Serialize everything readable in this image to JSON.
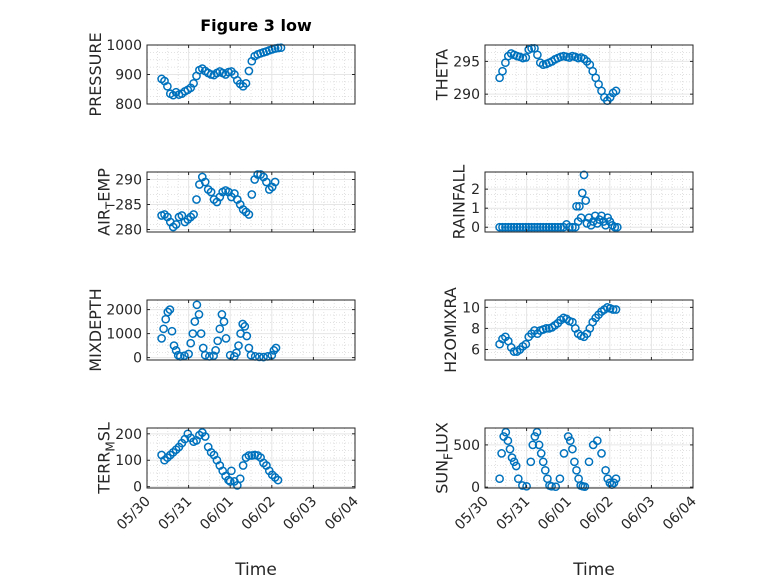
{
  "figure": {
    "title": "Figure 3 low",
    "xlabel": "Time",
    "x_tick_labels": [
      "05/30",
      "05/31",
      "06/01",
      "06/02",
      "06/03",
      "06/04"
    ]
  },
  "colors": {
    "marker": "#0072BD",
    "axis": "#262626",
    "grid": "#d9d9d9"
  },
  "chart_data": [
    {
      "type": "scatter",
      "ylabel": "PRESSURE",
      "ylim": [
        800,
        1000
      ],
      "yticks": [
        800,
        900,
        1000
      ],
      "x": [
        0.35,
        0.42,
        0.49,
        0.56,
        0.63,
        0.7,
        0.77,
        0.84,
        0.91,
        0.98,
        1.05,
        1.12,
        1.19,
        1.26,
        1.33,
        1.4,
        1.47,
        1.54,
        1.61,
        1.68,
        1.75,
        1.82,
        1.89,
        1.96,
        2.03,
        2.1,
        2.17,
        2.24,
        2.31,
        2.38,
        2.45,
        2.52,
        2.59,
        2.66,
        2.73,
        2.8,
        2.87,
        2.94,
        3.01,
        3.08,
        3.15,
        3.22
      ],
      "y": [
        885,
        878,
        860,
        835,
        830,
        840,
        832,
        835,
        843,
        848,
        855,
        870,
        895,
        915,
        920,
        912,
        905,
        900,
        898,
        905,
        910,
        905,
        900,
        908,
        910,
        900,
        880,
        868,
        860,
        870,
        912,
        945,
        962,
        968,
        972,
        975,
        978,
        982,
        985,
        988,
        990,
        991
      ]
    },
    {
      "type": "scatter",
      "ylabel": "THETA",
      "ylim": [
        288.5,
        297.5
      ],
      "yticks": [
        290,
        295
      ],
      "x": [
        0.35,
        0.42,
        0.49,
        0.56,
        0.63,
        0.7,
        0.77,
        0.84,
        0.91,
        0.98,
        1.05,
        1.12,
        1.19,
        1.26,
        1.33,
        1.4,
        1.47,
        1.54,
        1.61,
        1.68,
        1.75,
        1.82,
        1.89,
        1.96,
        2.03,
        2.1,
        2.17,
        2.24,
        2.31,
        2.38,
        2.45,
        2.52,
        2.59,
        2.66,
        2.73,
        2.8,
        2.87,
        2.94,
        3.01,
        3.08,
        3.15
      ],
      "y": [
        292.5,
        293.5,
        294.8,
        295.8,
        296.2,
        296.0,
        295.8,
        295.7,
        295.5,
        295.6,
        296.8,
        297.0,
        297.0,
        296.0,
        294.8,
        294.5,
        294.6,
        294.8,
        295.0,
        295.3,
        295.5,
        295.7,
        295.8,
        295.7,
        295.6,
        295.8,
        295.7,
        295.5,
        295.6,
        295.4,
        295.0,
        294.5,
        293.5,
        292.5,
        291.5,
        290.5,
        289.5,
        289.0,
        289.5,
        290.2,
        290.5
      ]
    },
    {
      "type": "scatter",
      "ylabel": "AIR_TEMP",
      "ylim": [
        279.5,
        291.5
      ],
      "yticks": [
        280,
        285,
        290
      ],
      "x": [
        0.35,
        0.42,
        0.49,
        0.56,
        0.63,
        0.7,
        0.77,
        0.84,
        0.91,
        0.98,
        1.05,
        1.12,
        1.19,
        1.26,
        1.33,
        1.4,
        1.47,
        1.54,
        1.61,
        1.68,
        1.75,
        1.82,
        1.89,
        1.96,
        2.03,
        2.1,
        2.17,
        2.24,
        2.31,
        2.38,
        2.45,
        2.52,
        2.59,
        2.66,
        2.73,
        2.8,
        2.87,
        2.94,
        3.01,
        3.08
      ],
      "y": [
        282.8,
        283.0,
        282.5,
        281.5,
        280.5,
        281.0,
        282.5,
        282.8,
        281.5,
        282.0,
        282.5,
        283.0,
        286.0,
        289.0,
        290.5,
        289.5,
        288.0,
        287.5,
        286.0,
        285.5,
        286.5,
        287.5,
        287.8,
        287.5,
        286.5,
        287.2,
        286.0,
        285.0,
        284.0,
        283.5,
        283.0,
        287.0,
        290.0,
        291.0,
        291.0,
        290.5,
        289.5,
        288.0,
        288.5,
        289.5
      ]
    },
    {
      "type": "scatter",
      "ylabel": "RAINFALL",
      "ylim": [
        -0.25,
        2.9
      ],
      "yticks": [
        0,
        1,
        2
      ],
      "x": [
        0.35,
        0.42,
        0.49,
        0.56,
        0.63,
        0.7,
        0.77,
        0.84,
        0.91,
        0.98,
        1.05,
        1.12,
        1.19,
        1.26,
        1.33,
        1.4,
        1.47,
        1.54,
        1.61,
        1.68,
        1.75,
        1.82,
        1.89,
        1.96,
        2.03,
        2.1,
        2.17,
        2.2,
        2.24,
        2.27,
        2.31,
        2.34,
        2.38,
        2.42,
        2.45,
        2.5,
        2.55,
        2.6,
        2.65,
        2.7,
        2.75,
        2.8,
        2.85,
        2.9,
        2.95,
        3.0,
        3.06,
        3.12,
        3.18
      ],
      "y": [
        0,
        0,
        0,
        0,
        0,
        0,
        0,
        0,
        0,
        0,
        0,
        0,
        0,
        0,
        0,
        0,
        0,
        0,
        0,
        0,
        0,
        0,
        0,
        0.15,
        0,
        0,
        0,
        1.1,
        0.3,
        1.1,
        0.5,
        1.8,
        2.75,
        1.4,
        0.2,
        0.5,
        0.1,
        0.3,
        0.6,
        0.2,
        0.4,
        0.6,
        0.3,
        0.1,
        0.5,
        0.3,
        0.1,
        0,
        0
      ]
    },
    {
      "type": "scatter",
      "ylabel": "MIXDEPTH",
      "ylim": [
        -100,
        2400
      ],
      "yticks": [
        0,
        1000,
        2000
      ],
      "x": [
        0.35,
        0.4,
        0.45,
        0.5,
        0.55,
        0.6,
        0.65,
        0.7,
        0.75,
        0.8,
        0.9,
        1.0,
        1.05,
        1.1,
        1.15,
        1.2,
        1.25,
        1.3,
        1.35,
        1.4,
        1.5,
        1.6,
        1.65,
        1.7,
        1.75,
        1.8,
        1.85,
        1.9,
        2.0,
        2.1,
        2.15,
        2.2,
        2.25,
        2.3,
        2.35,
        2.4,
        2.45,
        2.5,
        2.6,
        2.7,
        2.8,
        2.9,
        3.0,
        3.05,
        3.1
      ],
      "y": [
        800,
        1200,
        1600,
        1900,
        2000,
        1100,
        500,
        300,
        100,
        50,
        80,
        150,
        600,
        1000,
        1500,
        2200,
        1800,
        1000,
        400,
        100,
        50,
        80,
        300,
        700,
        1200,
        1800,
        1500,
        800,
        100,
        50,
        200,
        500,
        1000,
        1400,
        1300,
        900,
        400,
        100,
        50,
        30,
        20,
        50,
        100,
        300,
        400
      ]
    },
    {
      "type": "scatter",
      "ylabel": "H2OMIXRA",
      "ylim": [
        5.0,
        10.7
      ],
      "yticks": [
        6,
        8,
        10
      ],
      "x": [
        0.35,
        0.42,
        0.49,
        0.56,
        0.63,
        0.7,
        0.77,
        0.84,
        0.91,
        0.98,
        1.05,
        1.12,
        1.19,
        1.26,
        1.33,
        1.4,
        1.47,
        1.54,
        1.61,
        1.68,
        1.75,
        1.82,
        1.89,
        1.96,
        2.03,
        2.1,
        2.17,
        2.24,
        2.31,
        2.38,
        2.45,
        2.52,
        2.59,
        2.66,
        2.73,
        2.8,
        2.87,
        2.94,
        3.01,
        3.08,
        3.15
      ],
      "y": [
        6.5,
        7.0,
        7.2,
        6.8,
        6.2,
        5.8,
        5.8,
        6.0,
        6.3,
        6.5,
        7.2,
        7.5,
        7.8,
        7.5,
        7.8,
        7.9,
        8.0,
        8.0,
        8.1,
        8.3,
        8.5,
        8.8,
        9.0,
        8.9,
        8.7,
        8.6,
        8.0,
        7.5,
        7.3,
        7.2,
        7.5,
        8.0,
        8.6,
        9.0,
        9.3,
        9.6,
        9.8,
        10.0,
        9.9,
        9.8,
        9.8
      ]
    },
    {
      "type": "scatter",
      "ylabel": "TERR_MSL",
      "ylim": [
        -5,
        222
      ],
      "yticks": [
        0,
        100,
        200
      ],
      "x": [
        0.35,
        0.42,
        0.49,
        0.56,
        0.63,
        0.7,
        0.77,
        0.84,
        0.91,
        0.98,
        1.05,
        1.12,
        1.19,
        1.26,
        1.33,
        1.4,
        1.47,
        1.54,
        1.61,
        1.68,
        1.75,
        1.82,
        1.89,
        1.96,
        2.0,
        2.03,
        2.1,
        2.17,
        2.24,
        2.31,
        2.38,
        2.45,
        2.52,
        2.59,
        2.66,
        2.73,
        2.8,
        2.87,
        2.94,
        3.01,
        3.08,
        3.15
      ],
      "y": [
        120,
        100,
        110,
        120,
        130,
        140,
        150,
        165,
        180,
        200,
        185,
        170,
        175,
        195,
        205,
        190,
        150,
        130,
        120,
        100,
        80,
        60,
        40,
        25,
        20,
        60,
        20,
        5,
        30,
        80,
        110,
        118,
        118,
        120,
        118,
        110,
        90,
        80,
        60,
        45,
        35,
        25
      ]
    },
    {
      "type": "scatter",
      "ylabel": "SUN_FLUX",
      "ylim": [
        -10,
        700
      ],
      "yticks": [
        0,
        500
      ],
      "x": [
        0.35,
        0.4,
        0.45,
        0.5,
        0.55,
        0.6,
        0.65,
        0.7,
        0.75,
        0.8,
        0.9,
        1.0,
        1.1,
        1.15,
        1.2,
        1.25,
        1.3,
        1.35,
        1.4,
        1.45,
        1.5,
        1.55,
        1.6,
        1.7,
        1.8,
        1.9,
        2.0,
        2.05,
        2.1,
        2.15,
        2.2,
        2.25,
        2.3,
        2.35,
        2.4,
        2.5,
        2.6,
        2.7,
        2.8,
        2.9,
        2.95,
        3.0,
        3.05,
        3.1,
        3.15
      ],
      "y": [
        100,
        400,
        600,
        650,
        550,
        450,
        350,
        300,
        250,
        100,
        20,
        10,
        300,
        500,
        600,
        650,
        500,
        400,
        300,
        200,
        100,
        20,
        10,
        5,
        100,
        400,
        600,
        550,
        450,
        300,
        200,
        100,
        20,
        10,
        5,
        300,
        500,
        550,
        400,
        200,
        100,
        50,
        30,
        50,
        100
      ]
    }
  ]
}
